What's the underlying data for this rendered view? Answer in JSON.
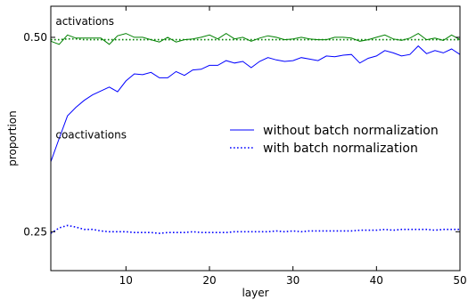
{
  "chart_data": {
    "type": "line",
    "title": "",
    "xlabel": "layer",
    "ylabel": "proportion",
    "xlim": [
      1,
      50
    ],
    "ylim": [
      0.2,
      0.54
    ],
    "grid": false,
    "legend_position": "center-right",
    "x_ticks": [
      10,
      20,
      30,
      40,
      50
    ],
    "x_tick_labels": [
      "10",
      "20",
      "30",
      "40",
      "50"
    ],
    "y_ticks": [
      0.25,
      0.5
    ],
    "y_tick_labels": [
      "0.25",
      "0.50"
    ],
    "annotations": [
      {
        "text": "activations",
        "x": 2,
        "y": 0.516
      },
      {
        "text": "coactivations",
        "x": 2,
        "y": 0.37
      }
    ],
    "legend": [
      {
        "label": "without batch normalization",
        "style": "solid",
        "color": "#0000ff"
      },
      {
        "label": "with batch normalization",
        "style": "dotted",
        "color": "#0000ff"
      }
    ],
    "series": [
      {
        "group": "activations",
        "style": "solid",
        "color": "#008000",
        "values": [
          0.495,
          0.491,
          0.503,
          0.499,
          0.499,
          0.499,
          0.499,
          0.491,
          0.502,
          0.505,
          0.5,
          0.5,
          0.497,
          0.494,
          0.5,
          0.494,
          0.497,
          0.498,
          0.5,
          0.503,
          0.498,
          0.505,
          0.498,
          0.5,
          0.495,
          0.499,
          0.502,
          0.5,
          0.497,
          0.498,
          0.5,
          0.498,
          0.497,
          0.497,
          0.5,
          0.5,
          0.499,
          0.495,
          0.497,
          0.5,
          0.503,
          0.498,
          0.496,
          0.499,
          0.505,
          0.497,
          0.499,
          0.496,
          0.503,
          0.497
        ]
      },
      {
        "group": "activations",
        "style": "dotted",
        "color": "#008000",
        "values": [
          0.497,
          0.497,
          0.498,
          0.498,
          0.497,
          0.497,
          0.497,
          0.497,
          0.497,
          0.497,
          0.497,
          0.497,
          0.497,
          0.497,
          0.497,
          0.497,
          0.497,
          0.497,
          0.497,
          0.497,
          0.497,
          0.497,
          0.497,
          0.497,
          0.497,
          0.497,
          0.497,
          0.497,
          0.497,
          0.497,
          0.497,
          0.497,
          0.497,
          0.497,
          0.497,
          0.497,
          0.497,
          0.497,
          0.497,
          0.497,
          0.497,
          0.497,
          0.497,
          0.497,
          0.497,
          0.497,
          0.497,
          0.497,
          0.497,
          0.497
        ]
      },
      {
        "group": "coactivations",
        "style": "solid",
        "color": "#0000ff",
        "values": [
          0.34,
          0.37,
          0.399,
          0.41,
          0.419,
          0.426,
          0.431,
          0.436,
          0.43,
          0.444,
          0.453,
          0.452,
          0.455,
          0.448,
          0.448,
          0.456,
          0.451,
          0.458,
          0.459,
          0.464,
          0.464,
          0.47,
          0.467,
          0.469,
          0.461,
          0.469,
          0.474,
          0.471,
          0.469,
          0.47,
          0.474,
          0.472,
          0.47,
          0.476,
          0.475,
          0.477,
          0.478,
          0.467,
          0.473,
          0.476,
          0.483,
          0.48,
          0.476,
          0.478,
          0.489,
          0.479,
          0.483,
          0.48,
          0.485,
          0.478
        ]
      },
      {
        "group": "coactivations",
        "style": "dotted",
        "color": "#0000ff",
        "values": [
          0.248,
          0.255,
          0.258,
          0.256,
          0.253,
          0.253,
          0.251,
          0.25,
          0.25,
          0.25,
          0.249,
          0.249,
          0.249,
          0.248,
          0.249,
          0.249,
          0.249,
          0.25,
          0.249,
          0.249,
          0.249,
          0.249,
          0.25,
          0.25,
          0.25,
          0.25,
          0.25,
          0.251,
          0.25,
          0.251,
          0.25,
          0.251,
          0.251,
          0.251,
          0.251,
          0.251,
          0.251,
          0.252,
          0.252,
          0.252,
          0.253,
          0.252,
          0.253,
          0.253,
          0.253,
          0.253,
          0.252,
          0.253,
          0.253,
          0.253
        ]
      }
    ]
  }
}
